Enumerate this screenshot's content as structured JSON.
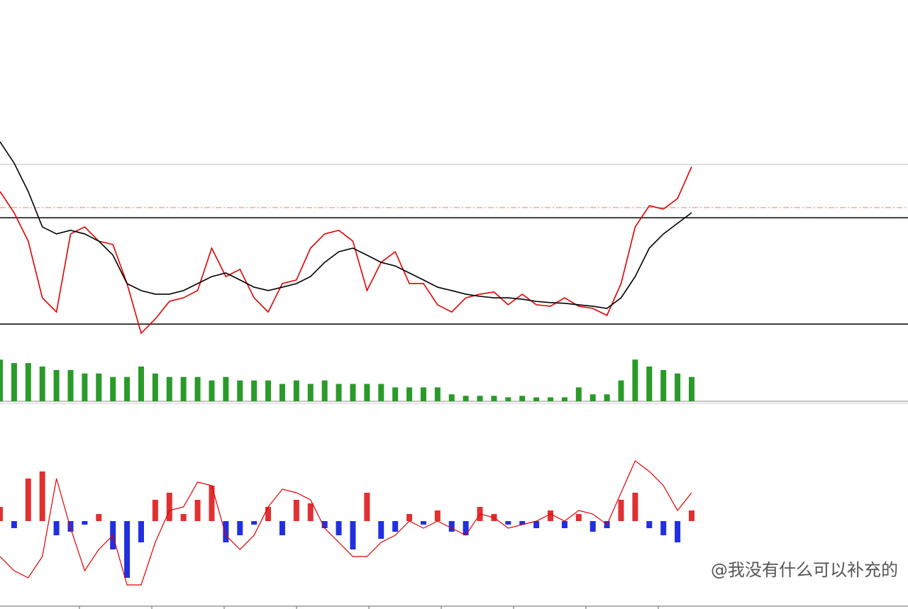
{
  "chart_data": [
    {
      "type": "line",
      "ylim": [
        0,
        100
      ],
      "levels": [
        {
          "value": 84.7,
          "color": "#bbbbbb",
          "style": "solid"
        },
        {
          "value": 66.8,
          "color": "#f08060",
          "style": "dashdot"
        },
        {
          "value": 62.6,
          "color": "#000000",
          "style": "solid"
        },
        {
          "value": 18.5,
          "color": "#000000",
          "style": "solid"
        }
      ],
      "series": [
        {
          "color": "#e00000",
          "values": [
            73.5,
            64.7,
            52.9,
            29.4,
            23.5,
            55.9,
            58.8,
            52.9,
            51.5,
            35.3,
            14.7,
            20.6,
            27.9,
            29.4,
            32.4,
            50.0,
            38.2,
            41.2,
            29.4,
            23.5,
            35.3,
            36.8,
            50.0,
            55.9,
            57.4,
            52.9,
            32.4,
            44.1,
            48.5,
            35.3,
            35.3,
            26.5,
            23.5,
            29.4,
            30.9,
            31.8,
            26.5,
            30.9,
            26.5,
            25.9,
            29.4,
            25.9,
            25.0,
            22.1,
            35.3,
            58.8,
            67.6,
            66.2,
            70.6,
            83.8
          ]
        },
        {
          "color": "#000000",
          "values": [
            94.1,
            85.3,
            73.5,
            58.8,
            55.9,
            57.4,
            55.9,
            52.9,
            47.1,
            35.3,
            32.4,
            30.9,
            30.9,
            32.4,
            35.3,
            38.2,
            39.7,
            36.8,
            33.8,
            32.4,
            33.8,
            35.3,
            38.2,
            44.1,
            48.5,
            50.0,
            47.1,
            44.1,
            42.6,
            39.7,
            36.8,
            33.8,
            32.4,
            30.9,
            30.0,
            29.4,
            29.4,
            28.8,
            27.9,
            27.4,
            27.1,
            26.5,
            25.9,
            25.0,
            29.4,
            38.2,
            50.0,
            55.9,
            60.3,
            64.7
          ]
        }
      ]
    },
    {
      "type": "bar",
      "ylim": [
        0,
        100
      ],
      "color": "#2a9a2a",
      "values": [
        84,
        77,
        77,
        70,
        63,
        63,
        56,
        56,
        49,
        49,
        70,
        56,
        49,
        49,
        49,
        42,
        49,
        42,
        42,
        42,
        35,
        42,
        35,
        42,
        35,
        35,
        35,
        35,
        28,
        28,
        28,
        28,
        14,
        11,
        11,
        11,
        8,
        11,
        8,
        8,
        8,
        28,
        14,
        14,
        42,
        84,
        70,
        63,
        56,
        49
      ]
    },
    {
      "type": "macd",
      "ylim": [
        -100,
        100
      ],
      "color_up": "#e03030",
      "color_down": "#2030e0",
      "values": [
        20,
        -10,
        60,
        70,
        -20,
        -15,
        -5,
        10,
        -40,
        -80,
        -30,
        30,
        40,
        10,
        30,
        50,
        -30,
        -20,
        -5,
        20,
        -20,
        30,
        25,
        -10,
        -20,
        -40,
        40,
        -25,
        -15,
        10,
        -5,
        15,
        -15,
        -20,
        20,
        10,
        -5,
        -5,
        -10,
        15,
        -10,
        10,
        -15,
        -10,
        30,
        40,
        -10,
        -20,
        -30,
        15
      ],
      "series": [
        {
          "color": "#e00000",
          "values": [
            -50,
            -70,
            -80,
            -50,
            60,
            -10,
            -70,
            -40,
            -20,
            -90,
            -90,
            -30,
            15,
            20,
            55,
            50,
            -20,
            -40,
            -20,
            20,
            45,
            40,
            30,
            -10,
            -30,
            -50,
            -50,
            -30,
            -20,
            0,
            -10,
            0,
            -10,
            -20,
            10,
            5,
            -10,
            -5,
            0,
            10,
            0,
            15,
            10,
            -5,
            40,
            85,
            70,
            50,
            15,
            40
          ]
        }
      ]
    }
  ],
  "watermark": "@我没有什么可以补充的"
}
